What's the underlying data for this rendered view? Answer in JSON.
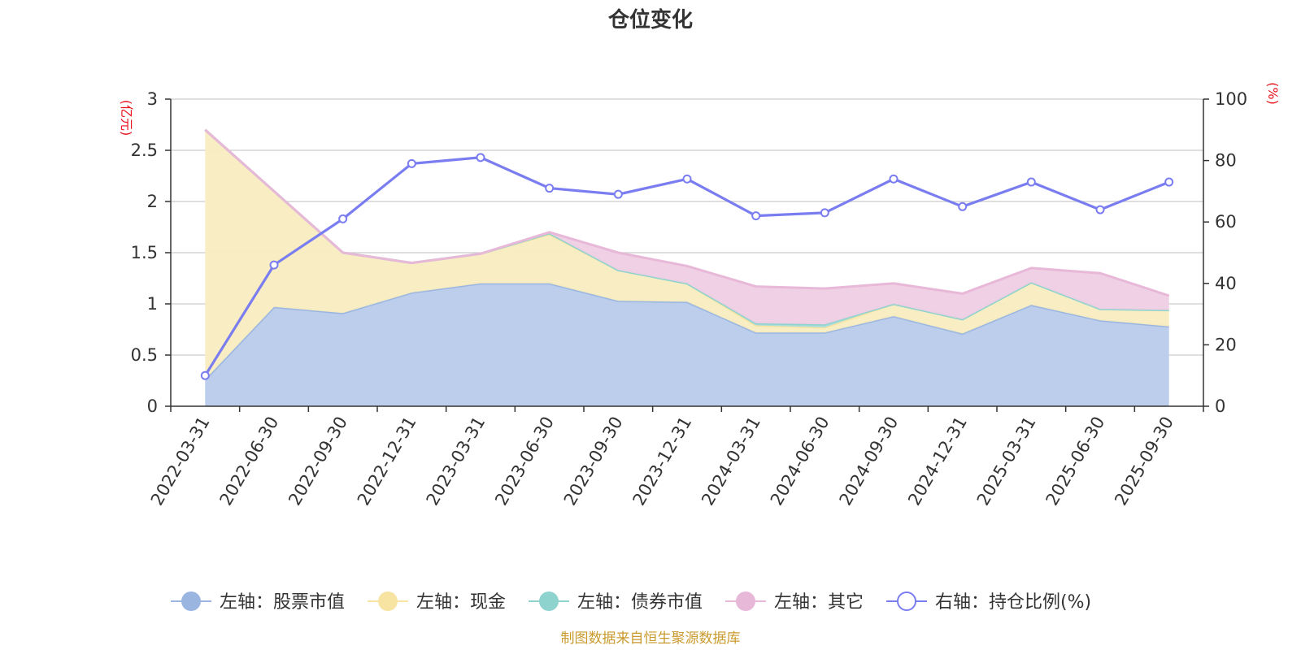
{
  "chart_data": {
    "type": "area",
    "title": "仓位变化",
    "left_axis_unit": "(亿元)",
    "right_axis_unit": "(%)",
    "left_ylim": [
      0,
      3
    ],
    "left_ticks": [
      "0",
      "0.5",
      "1",
      "1.5",
      "2",
      "2.5",
      "3"
    ],
    "right_ylim": [
      0,
      100
    ],
    "right_ticks": [
      "0",
      "20",
      "40",
      "60",
      "80",
      "100"
    ],
    "categories": [
      "2022-03-31",
      "2022-06-30",
      "2022-09-30",
      "2022-12-31",
      "2023-03-31",
      "2023-06-30",
      "2023-09-30",
      "2023-12-31",
      "2024-03-31",
      "2024-06-30",
      "2024-09-30",
      "2024-12-31",
      "2025-03-31",
      "2025-06-30",
      "2025-09-30"
    ],
    "stacked_series": [
      {
        "name": "左轴：股票市值",
        "axis": "left",
        "color": "#9ab6e0",
        "fill": "#b8cbea",
        "values": [
          0.26,
          0.97,
          0.91,
          1.11,
          1.2,
          1.2,
          1.03,
          1.02,
          0.72,
          0.72,
          0.88,
          0.71,
          0.99,
          0.84,
          0.78
        ]
      },
      {
        "name": "左轴：现金",
        "axis": "left",
        "color": "#f7e4a2",
        "fill": "#f9edc0",
        "values": [
          2.44,
          1.13,
          0.59,
          0.29,
          0.29,
          0.48,
          0.3,
          0.18,
          0.07,
          0.05,
          0.12,
          0.14,
          0.22,
          0.11,
          0.16
        ]
      },
      {
        "name": "左轴：债券市值",
        "axis": "left",
        "color": "#8fd3cf",
        "fill": "#a9dcd9",
        "values": [
          0,
          0,
          0,
          0,
          0,
          0.01,
          0,
          0,
          0.02,
          0.03,
          0,
          0,
          0,
          0,
          0
        ]
      },
      {
        "name": "左轴：其它",
        "axis": "left",
        "color": "#e8b8d8",
        "fill": "#efcde3",
        "values": [
          0,
          0,
          0,
          0,
          0,
          0.01,
          0.17,
          0.17,
          0.36,
          0.35,
          0.2,
          0.25,
          0.14,
          0.35,
          0.14
        ]
      }
    ],
    "line_series": {
      "name": "右轴：持仓比例(%)",
      "axis": "right",
      "color": "#7a7df0",
      "values": [
        10,
        46,
        61,
        79,
        81,
        71,
        69,
        74,
        62,
        63,
        74,
        65,
        73,
        64,
        73
      ]
    },
    "legend_position": "bottom",
    "source": "制图数据来自恒生聚源数据库"
  }
}
